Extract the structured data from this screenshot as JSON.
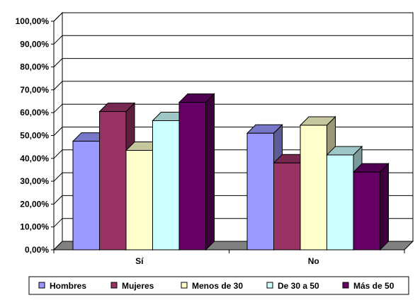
{
  "chart_data": {
    "type": "bar",
    "style": "3d-clustered",
    "categories": [
      "Sí",
      "No"
    ],
    "series": [
      {
        "name": "Hombres",
        "values": [
          47.5,
          51.0
        ],
        "color": "#9999ff"
      },
      {
        "name": "Mujeres",
        "values": [
          60.5,
          38.0
        ],
        "color": "#993366"
      },
      {
        "name": "Menos de 30",
        "values": [
          43.5,
          54.5
        ],
        "color": "#ffffcc"
      },
      {
        "name": "De 30 a 50",
        "values": [
          56.5,
          41.5
        ],
        "color": "#ccffff"
      },
      {
        "name": "Más de 50",
        "values": [
          64.5,
          34.0
        ],
        "color": "#660066"
      }
    ],
    "yticks": [
      "0,00%",
      "10,00%",
      "20,00%",
      "30,00%",
      "40,00%",
      "50,00%",
      "60,00%",
      "70,00%",
      "80,00%",
      "90,00%",
      "100,00%"
    ],
    "ylim": [
      0,
      100
    ],
    "grid": true,
    "legend_position": "bottom",
    "floor_color": "#808080"
  }
}
